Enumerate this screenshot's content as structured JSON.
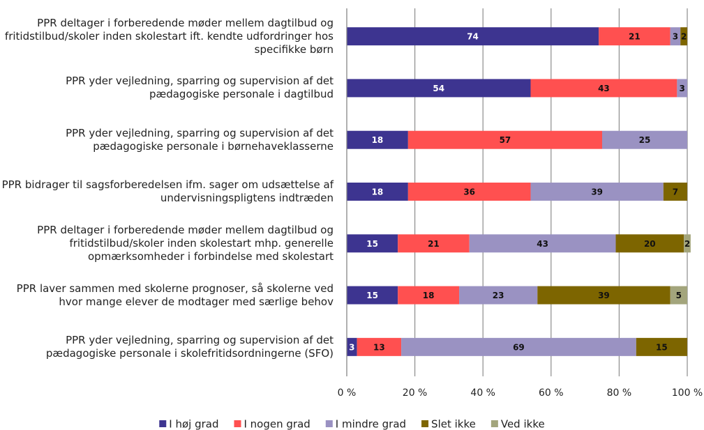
{
  "chart_data": {
    "type": "stacked-barh",
    "categories": [
      "PPR deltager i forberedende møder mellem dagtilbud og fritidstilbud/skoler inden skolestart ift. kendte udfordringer hos specifikke børn",
      "PPR yder vejledning, sparring og supervision af det pædagogiske personale i dagtilbud",
      "PPR yder vejledning, sparring og supervision af det pædagogiske personale i børnehaveklasserne",
      "PPR bidrager til sagsforberedelsen ifm. sager om udsættelse af undervisningspligtens indtræden",
      "PPR deltager i forberedende møder mellem dagtilbud og fritidstilbud/skoler inden skolestart mhp. generelle opmærksomheder i forbindelse med skolestart",
      "PPR laver sammen med skolerne prognoser, så skolerne ved hvor mange elever de modtager med særlige behov",
      "PPR yder vejledning, sparring og supervision af det pædagogiske personale i skolefritidsordningerne (SFO)"
    ],
    "series": [
      {
        "name": "I høj grad",
        "color": "#3d3490",
        "values": [
          74,
          54,
          18,
          18,
          15,
          15,
          3
        ]
      },
      {
        "name": "I nogen grad",
        "color": "#ff5050",
        "values": [
          21,
          43,
          57,
          36,
          21,
          18,
          13
        ]
      },
      {
        "name": "I mindre grad",
        "color": "#9a92c2",
        "values": [
          3,
          3,
          25,
          39,
          43,
          23,
          69
        ]
      },
      {
        "name": "Slet ikke",
        "color": "#7d6500",
        "values": [
          2,
          null,
          null,
          7,
          20,
          39,
          15
        ]
      },
      {
        "name": "Ved ikke",
        "color": "#a3a57c",
        "values": [
          null,
          null,
          null,
          null,
          2,
          5,
          null
        ]
      }
    ],
    "xlim": [
      0,
      100
    ],
    "xticks": [
      {
        "value": 0,
        "label": "0 %"
      },
      {
        "value": 20,
        "label": "20 %"
      },
      {
        "value": 40,
        "label": "40 %"
      },
      {
        "value": 60,
        "label": "60 %"
      },
      {
        "value": 80,
        "label": "80 %"
      },
      {
        "value": 100,
        "label": "100 %"
      }
    ],
    "grid": true,
    "legend": "bottom"
  }
}
